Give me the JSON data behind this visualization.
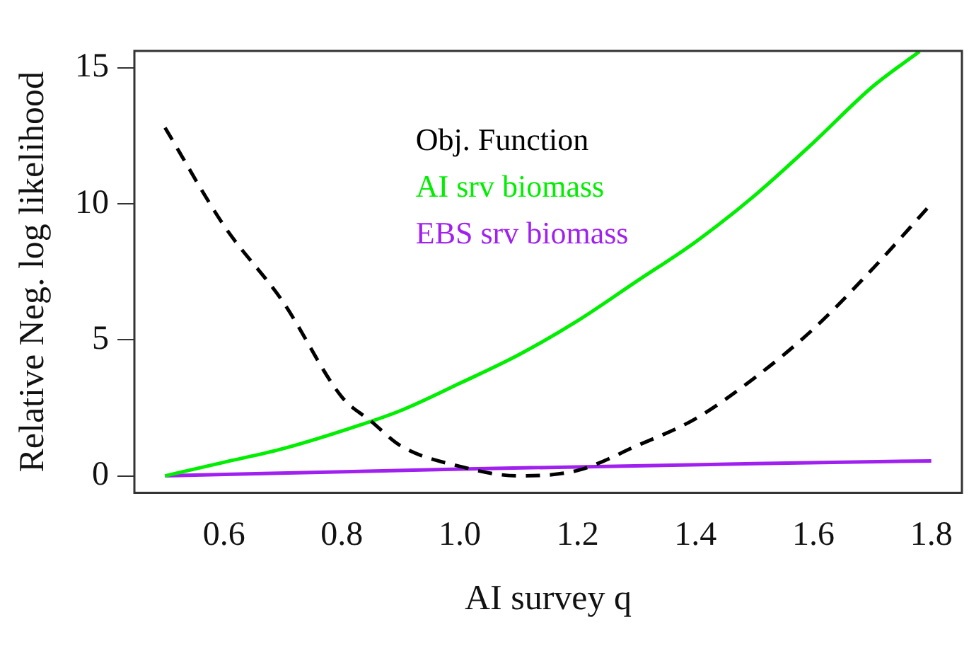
{
  "chart_data": {
    "type": "line",
    "xlabel": "AI survey q",
    "ylabel": "Relative Neg. log likelihood",
    "xlim": [
      0.448,
      1.852
    ],
    "ylim": [
      -0.62,
      15.62
    ],
    "xticks": [
      {
        "value": 0.6,
        "label": "0.6"
      },
      {
        "value": 0.8,
        "label": "0.8"
      },
      {
        "value": 1.0,
        "label": "1.0"
      },
      {
        "value": 1.2,
        "label": "1.2"
      },
      {
        "value": 1.4,
        "label": "1.4"
      },
      {
        "value": 1.6,
        "label": "1.6"
      },
      {
        "value": 1.8,
        "label": "1.8"
      }
    ],
    "yticks": [
      0,
      5,
      10,
      15
    ],
    "grid": false,
    "legend": "top",
    "marker": "none",
    "series": [
      {
        "name": "Obj. Function",
        "color": "#000000",
        "line_style": "dashed",
        "x": [
          0.5,
          0.6,
          0.7,
          0.8,
          0.85,
          0.9,
          1.0,
          1.1,
          1.2,
          1.3,
          1.4,
          1.5,
          1.6,
          1.7,
          1.8
        ],
        "values": [
          12.8,
          9.2,
          6.4,
          2.9,
          2.0,
          1.1,
          0.35,
          0,
          0.2,
          1.1,
          2.1,
          3.6,
          5.4,
          7.6,
          10.0
        ]
      },
      {
        "name": "AI srv biomass",
        "color": "#00ee00",
        "line_style": "solid",
        "x": [
          0.5,
          0.6,
          0.7,
          0.8,
          0.9,
          1.0,
          1.1,
          1.2,
          1.3,
          1.4,
          1.5,
          1.6,
          1.7,
          1.78
        ],
        "values": [
          0,
          0.5,
          1.0,
          1.65,
          2.4,
          3.4,
          4.45,
          5.7,
          7.15,
          8.6,
          10.3,
          12.25,
          14.3,
          15.6
        ]
      },
      {
        "name": "EBS srv biomass",
        "color": "#a020f0",
        "line_style": "solid",
        "x": [
          0.5,
          1.0,
          1.5,
          1.8
        ],
        "values": [
          0,
          0.25,
          0.45,
          0.55
        ]
      }
    ]
  }
}
